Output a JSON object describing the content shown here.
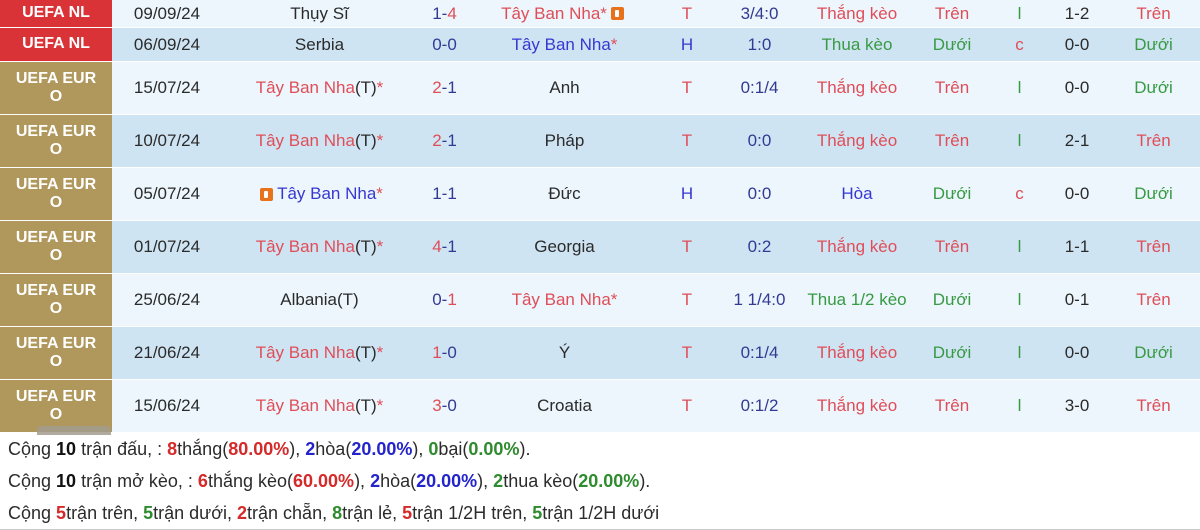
{
  "palette": {
    "k": "#2b2b2b",
    "r": "#df4e58",
    "n": "#333a94",
    "b2": "#3737d2",
    "g": "#379a43",
    "s_red": "#d42a2a",
    "s_blue": "#2424cc",
    "s_green": "#2e8b2e",
    "s_black": "#111111",
    "league_nl_bg": "#d93338",
    "league_euro_bg": "#b0985c",
    "card_icon_orange": "#e8721c"
  },
  "rows": [
    {
      "league": "UEFA NL",
      "league_style": "nl",
      "date": "09/09/24",
      "home": [
        {
          "t": "Thụy Sĩ",
          "c": "k"
        }
      ],
      "score": [
        {
          "t": "1",
          "c": "n"
        },
        {
          "t": "-",
          "c": "n"
        },
        {
          "t": "4",
          "c": "r"
        }
      ],
      "away": [
        {
          "t": "Tây Ban Nha*",
          "c": "r"
        },
        {
          "icon": "red-card"
        }
      ],
      "th": {
        "t": "T",
        "c": "r"
      },
      "odds": "3/4:0",
      "result": {
        "t": "Thắng kèo",
        "c": "r"
      },
      "ou_ft": {
        "t": "Trên",
        "c": "r"
      },
      "oe": {
        "t": "l",
        "c": "g"
      },
      "ht": "1-2",
      "ou_ht": {
        "t": "Trên",
        "c": "r"
      }
    },
    {
      "league": "UEFA NL",
      "league_style": "nl",
      "date": "06/09/24",
      "home": [
        {
          "t": "Serbia",
          "c": "k"
        }
      ],
      "score": [
        {
          "t": "0",
          "c": "n"
        },
        {
          "t": "-",
          "c": "n"
        },
        {
          "t": "0",
          "c": "n"
        }
      ],
      "away": [
        {
          "t": "Tây Ban Nha",
          "c": "b2"
        },
        {
          "t": "*",
          "c": "r"
        }
      ],
      "th": {
        "t": "H",
        "c": "b2"
      },
      "odds": "1:0",
      "result": {
        "t": "Thua kèo",
        "c": "g"
      },
      "ou_ft": {
        "t": "Dưới",
        "c": "g"
      },
      "oe": {
        "t": "c",
        "c": "r"
      },
      "ht": "0-0",
      "ou_ht": {
        "t": "Dưới",
        "c": "g"
      }
    },
    {
      "league": "UEFA EURO",
      "league_style": "euro",
      "date": "15/07/24",
      "home": [
        {
          "t": "Tây Ban Nha",
          "c": "r"
        },
        {
          "t": "(T)",
          "c": "k"
        },
        {
          "t": "*",
          "c": "r"
        }
      ],
      "score": [
        {
          "t": "2",
          "c": "r"
        },
        {
          "t": "-",
          "c": "n"
        },
        {
          "t": "1",
          "c": "n"
        }
      ],
      "away": [
        {
          "t": "Anh",
          "c": "k"
        }
      ],
      "th": {
        "t": "T",
        "c": "r"
      },
      "odds": "0:1/4",
      "result": {
        "t": "Thắng kèo",
        "c": "r"
      },
      "ou_ft": {
        "t": "Trên",
        "c": "r"
      },
      "oe": {
        "t": "l",
        "c": "g"
      },
      "ht": "0-0",
      "ou_ht": {
        "t": "Dưới",
        "c": "g"
      }
    },
    {
      "league": "UEFA EURO",
      "league_style": "euro",
      "date": "10/07/24",
      "home": [
        {
          "t": "Tây Ban Nha",
          "c": "r"
        },
        {
          "t": "(T)",
          "c": "k"
        },
        {
          "t": "*",
          "c": "r"
        }
      ],
      "score": [
        {
          "t": "2",
          "c": "r"
        },
        {
          "t": "-",
          "c": "n"
        },
        {
          "t": "1",
          "c": "n"
        }
      ],
      "away": [
        {
          "t": "Pháp",
          "c": "k"
        }
      ],
      "th": {
        "t": "T",
        "c": "r"
      },
      "odds": "0:0",
      "result": {
        "t": "Thắng kèo",
        "c": "r"
      },
      "ou_ft": {
        "t": "Trên",
        "c": "r"
      },
      "oe": {
        "t": "l",
        "c": "g"
      },
      "ht": "2-1",
      "ou_ht": {
        "t": "Trên",
        "c": "r"
      }
    },
    {
      "league": "UEFA EURO",
      "league_style": "euro",
      "date": "05/07/24",
      "home": [
        {
          "icon": "red-card"
        },
        {
          "t": "Tây Ban Nha",
          "c": "b2"
        },
        {
          "t": "*",
          "c": "r"
        }
      ],
      "score": [
        {
          "t": "1",
          "c": "n"
        },
        {
          "t": "-",
          "c": "n"
        },
        {
          "t": "1",
          "c": "n"
        }
      ],
      "away": [
        {
          "t": "Đức",
          "c": "k"
        }
      ],
      "th": {
        "t": "H",
        "c": "b2"
      },
      "odds": "0:0",
      "result": {
        "t": "Hòa",
        "c": "b2"
      },
      "ou_ft": {
        "t": "Dưới",
        "c": "g"
      },
      "oe": {
        "t": "c",
        "c": "r"
      },
      "ht": "0-0",
      "ou_ht": {
        "t": "Dưới",
        "c": "g"
      }
    },
    {
      "league": "UEFA EURO",
      "league_style": "euro",
      "date": "01/07/24",
      "home": [
        {
          "t": "Tây Ban Nha",
          "c": "r"
        },
        {
          "t": "(T)",
          "c": "k"
        },
        {
          "t": "*",
          "c": "r"
        }
      ],
      "score": [
        {
          "t": "4",
          "c": "r"
        },
        {
          "t": "-",
          "c": "n"
        },
        {
          "t": "1",
          "c": "n"
        }
      ],
      "away": [
        {
          "t": "Georgia",
          "c": "k"
        }
      ],
      "th": {
        "t": "T",
        "c": "r"
      },
      "odds": "0:2",
      "result": {
        "t": "Thắng kèo",
        "c": "r"
      },
      "ou_ft": {
        "t": "Trên",
        "c": "r"
      },
      "oe": {
        "t": "l",
        "c": "g"
      },
      "ht": "1-1",
      "ou_ht": {
        "t": "Trên",
        "c": "r"
      }
    },
    {
      "league": "UEFA EURO",
      "league_style": "euro",
      "date": "25/06/24",
      "home": [
        {
          "t": "Albania(T)",
          "c": "k"
        }
      ],
      "score": [
        {
          "t": "0",
          "c": "n"
        },
        {
          "t": "-",
          "c": "n"
        },
        {
          "t": "1",
          "c": "r"
        }
      ],
      "away": [
        {
          "t": "Tây Ban Nha*",
          "c": "r"
        }
      ],
      "th": {
        "t": "T",
        "c": "r"
      },
      "odds": "1 1/4:0",
      "result": {
        "t": "Thua 1/2 kèo",
        "c": "g"
      },
      "ou_ft": {
        "t": "Dưới",
        "c": "g"
      },
      "oe": {
        "t": "l",
        "c": "g"
      },
      "ht": "0-1",
      "ou_ht": {
        "t": "Trên",
        "c": "r"
      }
    },
    {
      "league": "UEFA EURO",
      "league_style": "euro",
      "date": "21/06/24",
      "home": [
        {
          "t": "Tây Ban Nha",
          "c": "r"
        },
        {
          "t": "(T)",
          "c": "k"
        },
        {
          "t": "*",
          "c": "r"
        }
      ],
      "score": [
        {
          "t": "1",
          "c": "r"
        },
        {
          "t": "-",
          "c": "n"
        },
        {
          "t": "0",
          "c": "n"
        }
      ],
      "away": [
        {
          "t": "Ý",
          "c": "k"
        }
      ],
      "th": {
        "t": "T",
        "c": "r"
      },
      "odds": "0:1/4",
      "result": {
        "t": "Thắng kèo",
        "c": "r"
      },
      "ou_ft": {
        "t": "Dưới",
        "c": "g"
      },
      "oe": {
        "t": "l",
        "c": "g"
      },
      "ht": "0-0",
      "ou_ht": {
        "t": "Dưới",
        "c": "g"
      }
    },
    {
      "league": "UEFA EURO",
      "league_style": "euro",
      "date": "15/06/24",
      "home": [
        {
          "t": "Tây Ban Nha",
          "c": "r"
        },
        {
          "t": "(T)",
          "c": "k"
        },
        {
          "t": "*",
          "c": "r"
        }
      ],
      "score": [
        {
          "t": "3",
          "c": "r"
        },
        {
          "t": "-",
          "c": "n"
        },
        {
          "t": "0",
          "c": "n"
        }
      ],
      "away": [
        {
          "t": "Croatia",
          "c": "k"
        }
      ],
      "th": {
        "t": "T",
        "c": "r"
      },
      "odds": "0:1/2",
      "result": {
        "t": "Thắng kèo",
        "c": "r"
      },
      "ou_ft": {
        "t": "Trên",
        "c": "r"
      },
      "oe": {
        "t": "l",
        "c": "g"
      },
      "ht": "3-0",
      "ou_ht": {
        "t": "Trên",
        "c": "r"
      }
    }
  ],
  "summary": [
    [
      {
        "t": "Cộng ",
        "c": "k"
      },
      {
        "t": "10",
        "c": "s_black",
        "b": 1
      },
      {
        "t": " trận đấu, : ",
        "c": "k"
      },
      {
        "t": "8",
        "c": "s_red",
        "b": 1
      },
      {
        "t": "thắng(",
        "c": "k"
      },
      {
        "t": "80.00%",
        "c": "s_red",
        "b": 1
      },
      {
        "t": "), ",
        "c": "k"
      },
      {
        "t": "2",
        "c": "s_blue",
        "b": 1
      },
      {
        "t": "hòa(",
        "c": "k"
      },
      {
        "t": "20.00%",
        "c": "s_blue",
        "b": 1
      },
      {
        "t": "), ",
        "c": "k"
      },
      {
        "t": "0",
        "c": "s_green",
        "b": 1
      },
      {
        "t": "bại(",
        "c": "k"
      },
      {
        "t": "0.00%",
        "c": "s_green",
        "b": 1
      },
      {
        "t": ").",
        "c": "k"
      }
    ],
    [
      {
        "t": "Cộng ",
        "c": "k"
      },
      {
        "t": "10",
        "c": "s_black",
        "b": 1
      },
      {
        "t": " trận mở kèo, : ",
        "c": "k"
      },
      {
        "t": "6",
        "c": "s_red",
        "b": 1
      },
      {
        "t": "thắng kèo(",
        "c": "k"
      },
      {
        "t": "60.00%",
        "c": "s_red",
        "b": 1
      },
      {
        "t": "), ",
        "c": "k"
      },
      {
        "t": "2",
        "c": "s_blue",
        "b": 1
      },
      {
        "t": "hòa(",
        "c": "k"
      },
      {
        "t": "20.00%",
        "c": "s_blue",
        "b": 1
      },
      {
        "t": "), ",
        "c": "k"
      },
      {
        "t": "2",
        "c": "s_green",
        "b": 1
      },
      {
        "t": "thua kèo(",
        "c": "k"
      },
      {
        "t": "20.00%",
        "c": "s_green",
        "b": 1
      },
      {
        "t": ").",
        "c": "k"
      }
    ],
    [
      {
        "t": "Cộng ",
        "c": "k"
      },
      {
        "t": "5",
        "c": "s_red",
        "b": 1
      },
      {
        "t": "trận trên, ",
        "c": "k"
      },
      {
        "t": "5",
        "c": "s_green",
        "b": 1
      },
      {
        "t": "trận dưới, ",
        "c": "k"
      },
      {
        "t": "2",
        "c": "s_red",
        "b": 1
      },
      {
        "t": "trận chẵn, ",
        "c": "k"
      },
      {
        "t": "8",
        "c": "s_green",
        "b": 1
      },
      {
        "t": "trận lẻ, ",
        "c": "k"
      },
      {
        "t": "5",
        "c": "s_red",
        "b": 1
      },
      {
        "t": "trận 1/2H trên, ",
        "c": "k"
      },
      {
        "t": "5",
        "c": "s_green",
        "b": 1
      },
      {
        "t": "trận 1/2H dưới",
        "c": "k"
      }
    ]
  ]
}
